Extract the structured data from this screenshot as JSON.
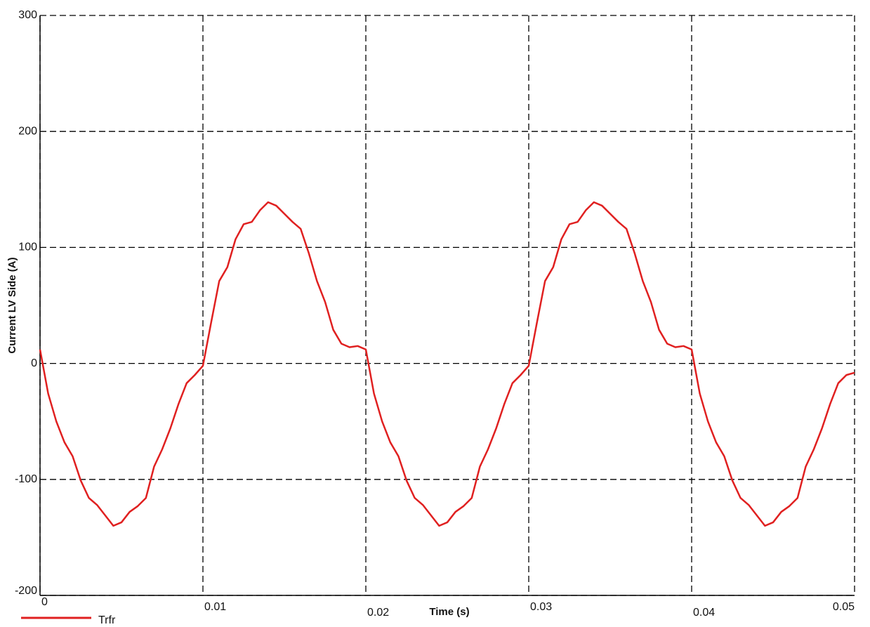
{
  "chart_data": {
    "type": "line",
    "x_label": "Time (s)",
    "y_label": "Current LV Side (A)",
    "x": [
      0,
      0.0005,
      0.001,
      0.0015,
      0.002,
      0.0025,
      0.003,
      0.0035,
      0.004,
      0.0045,
      0.005,
      0.0055,
      0.006,
      0.0065,
      0.007,
      0.0075,
      0.008,
      0.0085,
      0.009,
      0.0095,
      0.01,
      0.0105,
      0.011,
      0.0115,
      0.012,
      0.0125,
      0.013,
      0.0135,
      0.014,
      0.0145,
      0.015,
      0.0155,
      0.016,
      0.0165,
      0.017,
      0.0175,
      0.018,
      0.0185,
      0.019,
      0.0195,
      0.02,
      0.0205,
      0.021,
      0.0215,
      0.022,
      0.0225,
      0.023,
      0.0235,
      0.024,
      0.0245,
      0.025,
      0.0255,
      0.026,
      0.0265,
      0.027,
      0.0275,
      0.028,
      0.0285,
      0.029,
      0.0295,
      0.03,
      0.0305,
      0.031,
      0.0315,
      0.032,
      0.0325,
      0.033,
      0.0335,
      0.034,
      0.0345,
      0.035,
      0.0355,
      0.036,
      0.0365,
      0.037,
      0.0375,
      0.038,
      0.0385,
      0.039,
      0.0395,
      0.04,
      0.0405,
      0.041,
      0.0415,
      0.042,
      0.0425,
      0.043,
      0.0435,
      0.044,
      0.0445,
      0.045,
      0.0455,
      0.046,
      0.0465,
      0.047,
      0.0475,
      0.048,
      0.0485,
      0.049,
      0.0495,
      0.05
    ],
    "series": [
      {
        "name": "Trfr",
        "color": "#e02020",
        "values": [
          12,
          -26,
          -50,
          -68,
          -80,
          -101,
          -116,
          -122,
          -131,
          -140,
          -137,
          -128,
          -123,
          -116,
          -89,
          -74,
          -56,
          -35,
          -17,
          -10,
          -2,
          35,
          71,
          83,
          107,
          120,
          122,
          132,
          139,
          136,
          129,
          122,
          116,
          95,
          71,
          53,
          29,
          17,
          14,
          15,
          12,
          -26,
          -50,
          -68,
          -80,
          -101,
          -116,
          -122,
          -131,
          -140,
          -137,
          -128,
          -123,
          -116,
          -89,
          -74,
          -56,
          -35,
          -17,
          -10,
          -2,
          35,
          71,
          83,
          107,
          120,
          122,
          132,
          139,
          136,
          129,
          122,
          116,
          95,
          71,
          53,
          29,
          17,
          14,
          15,
          12,
          -26,
          -50,
          -68,
          -80,
          -101,
          -116,
          -122,
          -131,
          -140,
          -137,
          -128,
          -123,
          -116,
          -89,
          -74,
          -56,
          -35,
          -17,
          -10,
          -8
        ]
      }
    ],
    "xlim": [
      0,
      0.05
    ],
    "xticks": [
      0,
      0.01,
      0.02,
      0.03,
      0.04,
      0.05
    ],
    "ylim": [
      -200,
      300
    ],
    "yticks": [
      -200,
      -100,
      0,
      100,
      200,
      300
    ],
    "grid": true
  }
}
